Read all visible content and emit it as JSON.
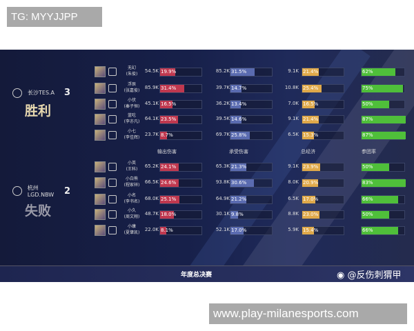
{
  "watermark_top": "TG: MYYJJPP",
  "watermark_bottom": "www.play-milanesports.com",
  "colors": {
    "damage": "#c0384f",
    "taken": "#5a6bb0",
    "economy": "#e0a94a",
    "participation": "#4fbf3a"
  },
  "headers": [
    "输出伤害",
    "承受伤害",
    "总经济",
    "参团率"
  ],
  "teams": [
    {
      "name": "长沙TES.A",
      "score": "3",
      "result": "胜利",
      "result_color": "#e8d9b0",
      "players": [
        {
          "name": "无幻",
          "real": "(朱俊)",
          "dmg": "54.5K",
          "dmg_pct": "19.9%",
          "taken": "85.2K",
          "taken_pct": "31.5%",
          "gold": "9.1K",
          "gold_pct": "21.4%",
          "kp": "62%"
        },
        {
          "name": "浮辰",
          "real": "(张嘉俊)",
          "dmg": "85.9K",
          "dmg_pct": "31.4%",
          "taken": "39.7K",
          "taken_pct": "14.7%",
          "gold": "10.8K",
          "gold_pct": "25.4%",
          "kp": "75%"
        },
        {
          "name": "小伏",
          "real": "(秦子恒)",
          "dmg": "45.1K",
          "dmg_pct": "16.5%",
          "taken": "36.2K",
          "taken_pct": "13.4%",
          "gold": "7.0K",
          "gold_pct": "16.5%",
          "kp": "50%"
        },
        {
          "name": "蓝吃",
          "real": "(李亦凡)",
          "dmg": "64.1K",
          "dmg_pct": "23.5%",
          "taken": "39.5K",
          "taken_pct": "14.6%",
          "gold": "9.1K",
          "gold_pct": "21.4%",
          "kp": "87%"
        },
        {
          "name": "小七",
          "real": "(李佳辉)",
          "dmg": "23.7K",
          "dmg_pct": "8.7%",
          "taken": "69.7K",
          "taken_pct": "25.8%",
          "gold": "6.5K",
          "gold_pct": "15.3%",
          "kp": "87%"
        }
      ]
    },
    {
      "name": "杭州LGD.NBW",
      "score": "2",
      "result": "失败",
      "result_color": "#9a9aa8",
      "players": [
        {
          "name": "小英",
          "real": "(王科)",
          "dmg": "65.2K",
          "dmg_pct": "24.1%",
          "taken": "65.3K",
          "taken_pct": "21.3%",
          "gold": "9.1K",
          "gold_pct": "23.9%",
          "kp": "50%"
        },
        {
          "name": "小白熊",
          "real": "(程家祥)",
          "dmg": "66.5K",
          "dmg_pct": "24.6%",
          "taken": "93.8K",
          "taken_pct": "30.6%",
          "gold": "8.0K",
          "gold_pct": "20.9%",
          "kp": "83%"
        },
        {
          "name": "小名",
          "real": "(李书名)",
          "dmg": "68.0K",
          "dmg_pct": "25.1%",
          "taken": "64.9K",
          "taken_pct": "21.2%",
          "gold": "6.5K",
          "gold_pct": "17.0%",
          "kp": "66%"
        },
        {
          "name": "小久",
          "real": "(周文翔)",
          "dmg": "48.7K",
          "dmg_pct": "18.0%",
          "taken": "30.1K",
          "taken_pct": "9.8%",
          "gold": "8.8K",
          "gold_pct": "23.0%",
          "kp": "50%"
        },
        {
          "name": "小康",
          "real": "(夏肇凯)",
          "dmg": "22.0K",
          "dmg_pct": "8.1%",
          "taken": "52.1K",
          "taken_pct": "17.0%",
          "gold": "5.9K",
          "gold_pct": "15.4%",
          "kp": "66%"
        }
      ]
    }
  ],
  "footer": {
    "title": "年度总决赛",
    "weibo": "@反伤刺猬甲"
  }
}
